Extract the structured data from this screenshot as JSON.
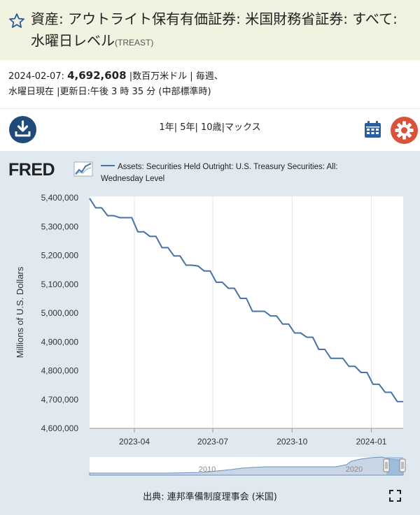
{
  "header": {
    "title": "資産: アウトライト保有有価証券: 米国財務省証券: すべて: 水曜日レベル",
    "series_id": "(TREAST)"
  },
  "meta": {
    "date": "2024-02-07:",
    "value": "4,692,608",
    "details_line1": "|数百万米ドル | 毎週、",
    "details_line2": "水曜日現在 |更新日:午後 3 時 35 分 (中部標準時)"
  },
  "range_links": [
    "1年",
    "5年",
    "10歳",
    "マックス"
  ],
  "legend_label": "Assets: Securities Held Outright: U.S. Treasury Securities: All: Wednesday Level",
  "source_text": "出典: 連邦準備制度理事会 (米国)",
  "colors": {
    "series": "#4572a7",
    "panel": "#e1e9f0",
    "title_bg": "#f1f3e0",
    "download": "#1f4a7a",
    "gear": "#d9533a"
  },
  "icons": [
    "star-icon",
    "download-icon",
    "calendar-icon",
    "gear-icon",
    "fred-logo",
    "fullscreen-icon"
  ],
  "chart_data": {
    "type": "line",
    "title": "",
    "xlabel": "",
    "ylabel": "Millions of U.S. Dollars",
    "ylim": [
      4600000,
      5400000
    ],
    "yticks": [
      4600000,
      4700000,
      4800000,
      4900000,
      5000000,
      5100000,
      5200000,
      5300000,
      5400000
    ],
    "ytick_labels": [
      "4,600,000",
      "4,700,000",
      "4,800,000",
      "4,900,000",
      "5,000,000",
      "5,100,000",
      "5,200,000",
      "5,300,000",
      "5,400,000"
    ],
    "xlim": [
      "2023-02-08",
      "2024-02-07"
    ],
    "xticks": [
      "2023-04-01",
      "2023-07-01",
      "2023-10-01",
      "2024-01-01"
    ],
    "xtick_labels": [
      "2023-04",
      "2023-07",
      "2023-10",
      "2024-01"
    ],
    "grid": "vertical",
    "series": [
      {
        "name": "Assets: Securities Held Outright: U.S. Treasury Securities: All: Wednesday Level",
        "x": [
          "2023-02-08",
          "2023-02-15",
          "2023-02-22",
          "2023-03-01",
          "2023-03-08",
          "2023-03-15",
          "2023-03-22",
          "2023-03-29",
          "2023-04-05",
          "2023-04-12",
          "2023-04-19",
          "2023-04-26",
          "2023-05-03",
          "2023-05-10",
          "2023-05-17",
          "2023-05-24",
          "2023-05-31",
          "2023-06-07",
          "2023-06-14",
          "2023-06-21",
          "2023-06-28",
          "2023-07-05",
          "2023-07-12",
          "2023-07-19",
          "2023-07-26",
          "2023-08-02",
          "2023-08-09",
          "2023-08-16",
          "2023-08-23",
          "2023-08-30",
          "2023-09-06",
          "2023-09-13",
          "2023-09-20",
          "2023-09-27",
          "2023-10-04",
          "2023-10-11",
          "2023-10-18",
          "2023-10-25",
          "2023-11-01",
          "2023-11-08",
          "2023-11-15",
          "2023-11-22",
          "2023-11-29",
          "2023-12-06",
          "2023-12-13",
          "2023-12-20",
          "2023-12-27",
          "2024-01-03",
          "2024-01-10",
          "2024-01-17",
          "2024-01-24",
          "2024-01-31",
          "2024-02-07"
        ],
        "values": [
          5398000,
          5365000,
          5365000,
          5338000,
          5338000,
          5331000,
          5331000,
          5331000,
          5282000,
          5282000,
          5266000,
          5266000,
          5227000,
          5227000,
          5198000,
          5198000,
          5166000,
          5166000,
          5163000,
          5146000,
          5146000,
          5107000,
          5107000,
          5086000,
          5086000,
          5051000,
          5051000,
          5006000,
          5006000,
          5006000,
          4990000,
          4990000,
          4962000,
          4962000,
          4931000,
          4931000,
          4916000,
          4916000,
          4874000,
          4874000,
          4843000,
          4843000,
          4843000,
          4815000,
          4815000,
          4794000,
          4794000,
          4753000,
          4753000,
          4725000,
          4725000,
          4693000,
          4692608
        ]
      }
    ],
    "navigator": {
      "x_labels": [
        "2010",
        "2020"
      ],
      "selection": [
        "2023-02-08",
        "2024-02-07"
      ]
    }
  }
}
